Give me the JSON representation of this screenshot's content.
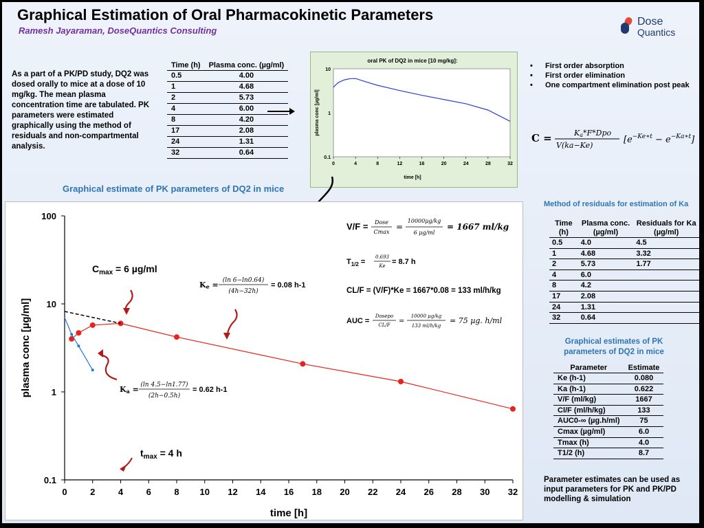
{
  "header": {
    "title": "Graphical Estimation of Oral Pharmacokinetic Parameters",
    "author": "Ramesh Jayaraman, DoseQuantics Consulting",
    "logo_line1": "Dose",
    "logo_line2": "Quantics"
  },
  "intro_text": "As a part of a PK/PD study, DQ2 was dosed orally to mice at a dose of 10 mg/kg. The mean plasma concentration time are tabulated. PK parameters were estimated graphically using the method of residuals and non-compartmental analysis.",
  "data_table": {
    "headers": [
      "Time (h)",
      "Plasma conc. (µg/ml)"
    ],
    "rows": [
      [
        "0.5",
        "4.00"
      ],
      [
        "1",
        "4.68"
      ],
      [
        "2",
        "5.73"
      ],
      [
        "4",
        "6.00"
      ],
      [
        "8",
        "4.20"
      ],
      [
        "17",
        "2.08"
      ],
      [
        "24",
        "1.31"
      ],
      [
        "32",
        "0.64"
      ]
    ]
  },
  "bullets": [
    "First order absorption",
    "First order elimination",
    "One compartment elimination post peak"
  ],
  "equation_c": "C = [Ka*F*Dpo / V(ka−Ke)] [e^(−Ke*t) − e^(−Ka*t)]",
  "section_title": "Graphical estimate of PK parameters of DQ2 in mice",
  "annotations": {
    "cmax": "Cmax = 6 µg/ml",
    "tmax": "tmax = 4 h",
    "ke": "Ke = (ln 6−ln0.64)/(4h−32h) = 0.08 h-1",
    "ka": "Ka = (ln 4.5−ln1.77)/(2h−0.5h) = 0.62 h-1",
    "vf": "V/F = Dose/Cmax = (10000 µg/kg)/(6 µg/ml) = 1667 ml/kg",
    "thalf": "T1/2 = 0.693/Ke = 8.7 h",
    "clf": "CL/F = (V/F)*Ke = 1667*0.08 = 133 ml/h/kg",
    "auc": "AUC = Dosepo/(CL/F) = (10000 µg/kg)/(133 ml/h/kg) = 75 µg.h/ml"
  },
  "ka_table": {
    "title": "Method of residuals for estimation of Ka",
    "headers": [
      "Time (h)",
      "Plasma conc. (µg/ml)",
      "Residuals for Ka (µg/ml)"
    ],
    "rows": [
      [
        "0.5",
        "4.0",
        "4.5"
      ],
      [
        "1",
        "4.68",
        "3.32"
      ],
      [
        "2",
        "5.73",
        "1.77"
      ],
      [
        "4",
        "6.0",
        ""
      ],
      [
        "8",
        "4.2",
        ""
      ],
      [
        "17",
        "2.08",
        ""
      ],
      [
        "24",
        "1.31",
        ""
      ],
      [
        "32",
        "0.64",
        ""
      ]
    ]
  },
  "est_table": {
    "title": "Graphical estimates of PK parameters of DQ2 in mice",
    "headers": [
      "Parameter",
      "Estimate"
    ],
    "rows": [
      [
        "Ke (h-1)",
        "0.080"
      ],
      [
        "Ka (h-1)",
        "0.622"
      ],
      [
        "V/F (ml/kg)",
        "1667"
      ],
      [
        "Cl/F (ml/h/kg)",
        "133"
      ],
      [
        "AUC0-∞ (µg.h/ml)",
        "75"
      ],
      [
        "Cmax (µg/ml)",
        "6.0"
      ],
      [
        "Tmax (h)",
        "4.0"
      ],
      [
        "T1/2 (h)",
        "8.7"
      ]
    ]
  },
  "footer": "Parameter estimates can be used as input parameters for PK and PK/PD modelling & simulation",
  "colors": {
    "title_purple": "#7030a0",
    "accent_blue": "#2e75b6",
    "series_red": "#e8231f",
    "model_blue": "#2a3fd6",
    "residual_blue": "#1f78d8",
    "mini_bg": "#e2efd9"
  },
  "chart_data": [
    {
      "type": "line",
      "title": "oral PK of DQ2 in mice [10 mg/kg]:",
      "xlabel": "time [h]",
      "ylabel": "plasma conc [µg/ml]",
      "xlim": [
        0,
        32
      ],
      "ylim": [
        0.1,
        10
      ],
      "yscale": "log",
      "xticks": [
        0,
        4,
        8,
        12,
        16,
        20,
        24,
        28,
        32
      ],
      "yticks": [
        0.1,
        1,
        10
      ],
      "series": [
        {
          "name": "",
          "x": [
            0,
            0.5,
            1,
            2,
            3,
            4,
            6,
            8,
            12,
            16,
            20,
            24,
            28,
            32
          ],
          "y": [
            3.8,
            4.4,
            4.95,
            5.6,
            5.95,
            6.0,
            5.0,
            4.2,
            3.2,
            2.5,
            2.0,
            1.6,
            1.15,
            0.64
          ]
        }
      ]
    },
    {
      "type": "scatter",
      "title": "",
      "xlabel": "time [h]",
      "ylabel": "plasma conc [µg/ml]",
      "xlim": [
        0,
        32
      ],
      "ylim": [
        0.1,
        100
      ],
      "yscale": "log",
      "xticks": [
        0,
        2,
        4,
        6,
        8,
        10,
        12,
        14,
        16,
        18,
        20,
        22,
        24,
        26,
        28,
        30,
        32
      ],
      "yticks": [
        0.1,
        1,
        10,
        100
      ],
      "series": [
        {
          "name": "",
          "x": [
            0.5,
            1,
            2,
            4,
            8,
            17,
            24,
            32
          ],
          "y": [
            4.0,
            4.68,
            5.73,
            6.0,
            4.2,
            2.08,
            1.31,
            0.64
          ]
        },
        {
          "name": "",
          "x": [
            0,
            0.5,
            1,
            2
          ],
          "y": [
            7.0,
            4.5,
            3.32,
            1.77
          ]
        },
        {
          "name": "",
          "x": [
            0,
            4
          ],
          "y": [
            8.2,
            6.0
          ]
        }
      ]
    }
  ]
}
